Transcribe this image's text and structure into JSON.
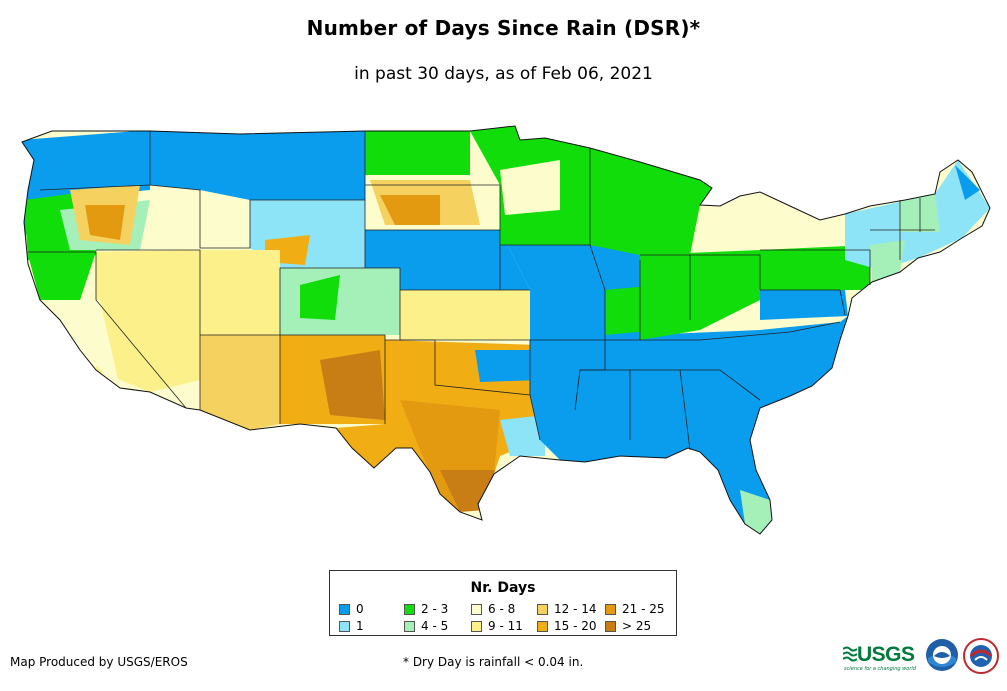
{
  "title": "Number of Days Since Rain (DSR)*",
  "subtitle": "in past 30 days, as of Feb 06, 2021",
  "legend": {
    "title": "Nr. Days",
    "items": [
      {
        "label": "0",
        "color": "#0a9ced"
      },
      {
        "label": "1",
        "color": "#8ee4f7"
      },
      {
        "label": "2 - 3",
        "color": "#10dd0a"
      },
      {
        "label": "4 - 5",
        "color": "#a5efb8"
      },
      {
        "label": "6 - 8",
        "color": "#fdfccd"
      },
      {
        "label": "9 - 11",
        "color": "#fbf08a"
      },
      {
        "label": "12 - 14",
        "color": "#f5d260"
      },
      {
        "label": "15 - 20",
        "color": "#f0ad14"
      },
      {
        "label": "21 - 25",
        "color": "#e49a10"
      },
      {
        "label": "> 25",
        "color": "#c87e14"
      }
    ]
  },
  "credit": "Map Produced by USGS/EROS",
  "footnote": "* Dry Day is rainfall < 0.04 in.",
  "logos": {
    "usgs": "USGS",
    "usgs_tagline": "science for a changing world",
    "noaa": "noaa-logo",
    "nws": "nws-logo"
  }
}
